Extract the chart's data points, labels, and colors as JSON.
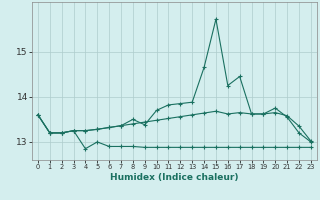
{
  "xlabel": "Humidex (Indice chaleur)",
  "background_color": "#d4eeee",
  "grid_color": "#aecccc",
  "line_color": "#1a7060",
  "x_values": [
    0,
    1,
    2,
    3,
    4,
    5,
    6,
    7,
    8,
    9,
    10,
    11,
    12,
    13,
    14,
    15,
    16,
    17,
    18,
    19,
    20,
    21,
    22,
    23
  ],
  "line_main": [
    13.6,
    13.2,
    13.2,
    13.25,
    13.25,
    13.28,
    13.32,
    13.36,
    13.5,
    13.38,
    13.7,
    13.82,
    13.85,
    13.88,
    14.65,
    15.72,
    14.25,
    14.45,
    13.62,
    13.62,
    13.75,
    13.55,
    13.2,
    13.0
  ],
  "line_low": [
    13.6,
    13.2,
    13.2,
    13.25,
    12.85,
    13.0,
    12.9,
    12.9,
    12.9,
    12.88,
    12.88,
    12.88,
    12.88,
    12.88,
    12.88,
    12.88,
    12.88,
    12.88,
    12.88,
    12.88,
    12.88,
    12.88,
    12.88,
    12.88
  ],
  "line_trend": [
    13.6,
    13.2,
    13.2,
    13.25,
    13.25,
    13.28,
    13.32,
    13.36,
    13.4,
    13.44,
    13.48,
    13.52,
    13.56,
    13.6,
    13.64,
    13.68,
    13.62,
    13.65,
    13.62,
    13.62,
    13.65,
    13.58,
    13.35,
    13.02
  ],
  "ylim": [
    12.6,
    16.1
  ],
  "xlim": [
    -0.5,
    23.5
  ],
  "yticks": [
    13,
    14,
    15
  ],
  "xticks": [
    0,
    1,
    2,
    3,
    4,
    5,
    6,
    7,
    8,
    9,
    10,
    11,
    12,
    13,
    14,
    15,
    16,
    17,
    18,
    19,
    20,
    21,
    22,
    23
  ]
}
